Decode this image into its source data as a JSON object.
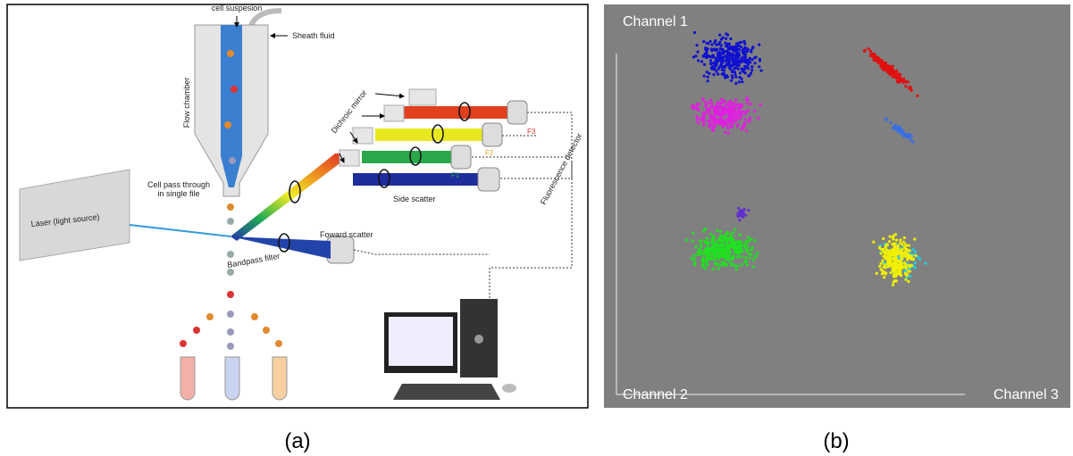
{
  "panel_a": {
    "caption": "(a)",
    "labels": {
      "cell_suspension": "cell suspesion",
      "sheath_fluid": "Sheath fluid",
      "flow_chamber": "Flow chamber",
      "dichroic_mirror": "Dichroic mirror",
      "fluorescence_detector": "Fluorescence detector",
      "f3": "F3",
      "f2": "F2",
      "f1": "F1",
      "side_scatter": "Side scatter",
      "cell_pass_1": "Cell pass through",
      "cell_pass_2": "in single file",
      "laser": "Laser (light source)",
      "forward_scatter": "Foward scatter",
      "bandpass_filter": "Bandpass filter"
    }
  },
  "panel_b": {
    "caption": "(b)",
    "axis_1": "Channel 1",
    "axis_2": "Channel 2",
    "axis_3": "Channel 3"
  }
}
